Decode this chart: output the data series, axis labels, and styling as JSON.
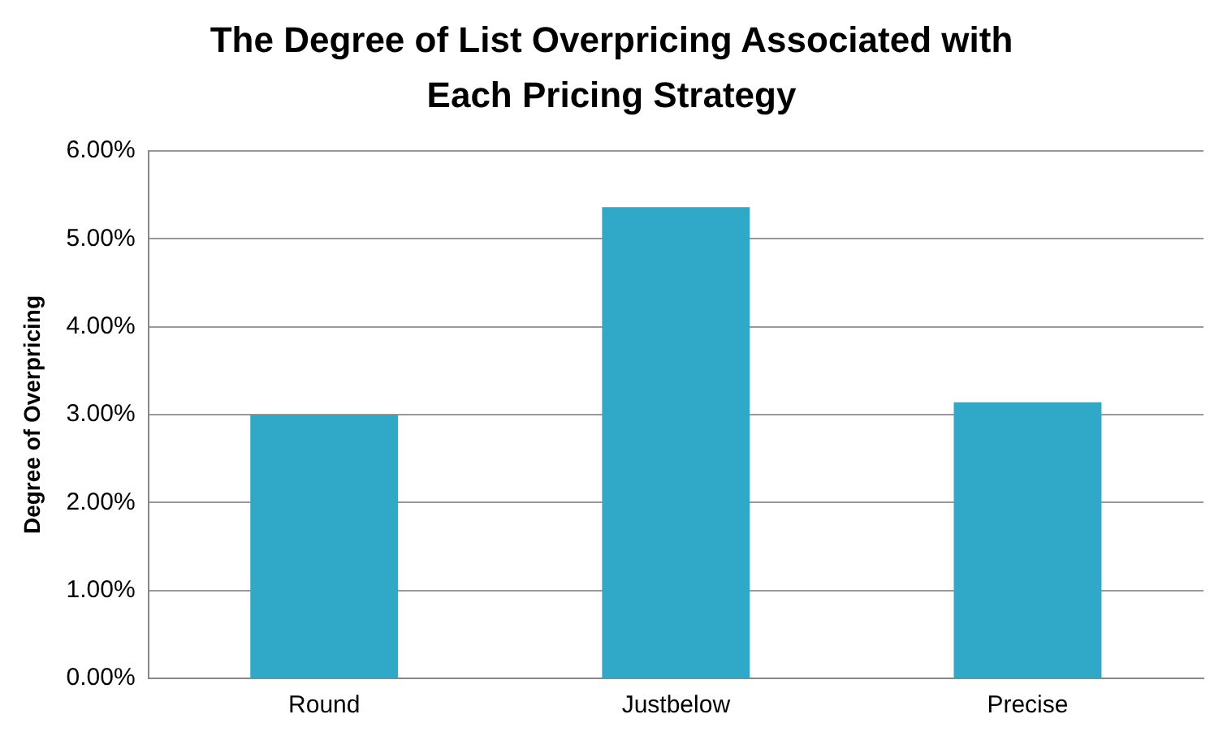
{
  "chart_data": {
    "type": "bar",
    "title": "The Degree of List Overpricing Associated with Each Pricing Strategy",
    "ylabel": "Degree of Overpricing",
    "categories": [
      "Round",
      "Justbelow",
      "Precise"
    ],
    "values": [
      3.0,
      5.36,
      3.14
    ],
    "color": "#30a8c8",
    "ylim": [
      0,
      6
    ],
    "yticks": [
      {
        "value": 0,
        "label": "0.00%"
      },
      {
        "value": 1,
        "label": "1.00%"
      },
      {
        "value": 2,
        "label": "2.00%"
      },
      {
        "value": 3,
        "label": "3.00%"
      },
      {
        "value": 4,
        "label": "4.00%"
      },
      {
        "value": 5,
        "label": "5.00%"
      },
      {
        "value": 6,
        "label": "6.00%"
      }
    ],
    "grid": "y",
    "legend": false
  }
}
